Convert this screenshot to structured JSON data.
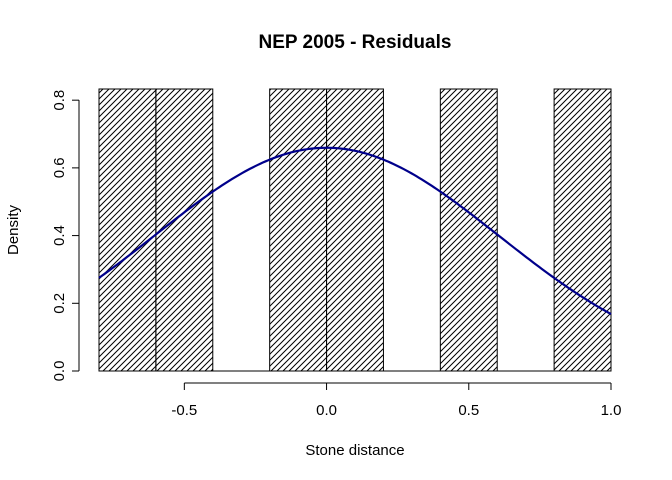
{
  "chart_data": {
    "type": "bar",
    "title": "NEP 2005 - Residuals",
    "xlabel": "Stone distance",
    "ylabel": "Density",
    "bins": [
      {
        "x0": -0.8,
        "x1": -0.6,
        "density": 0.833
      },
      {
        "x0": -0.6,
        "x1": -0.4,
        "density": 0.833
      },
      {
        "x0": -0.4,
        "x1": -0.2,
        "density": 0.0
      },
      {
        "x0": -0.2,
        "x1": 0.0,
        "density": 0.833
      },
      {
        "x0": 0.0,
        "x1": 0.2,
        "density": 0.833
      },
      {
        "x0": 0.2,
        "x1": 0.4,
        "density": 0.0
      },
      {
        "x0": 0.4,
        "x1": 0.6,
        "density": 0.833
      },
      {
        "x0": 0.6,
        "x1": 0.8,
        "density": 0.0
      },
      {
        "x0": 0.8,
        "x1": 1.0,
        "density": 0.833
      }
    ],
    "density_curve": {
      "type": "normal",
      "mean": 0.0,
      "sd": 0.605,
      "color": "#00008B"
    },
    "xlim": [
      -0.8,
      1.0
    ],
    "ylim": [
      0,
      0.833
    ],
    "x_ticks": [
      -0.5,
      0.0,
      0.5,
      1.0
    ],
    "x_tick_labels": [
      "-0.5",
      "0.0",
      "0.5",
      "1.0"
    ],
    "y_ticks": [
      0.0,
      0.2,
      0.4,
      0.6,
      0.8
    ],
    "y_tick_labels": [
      "0.0",
      "0.2",
      "0.4",
      "0.6",
      "0.8"
    ],
    "fill": "diagonal-hatch",
    "grid": false
  }
}
